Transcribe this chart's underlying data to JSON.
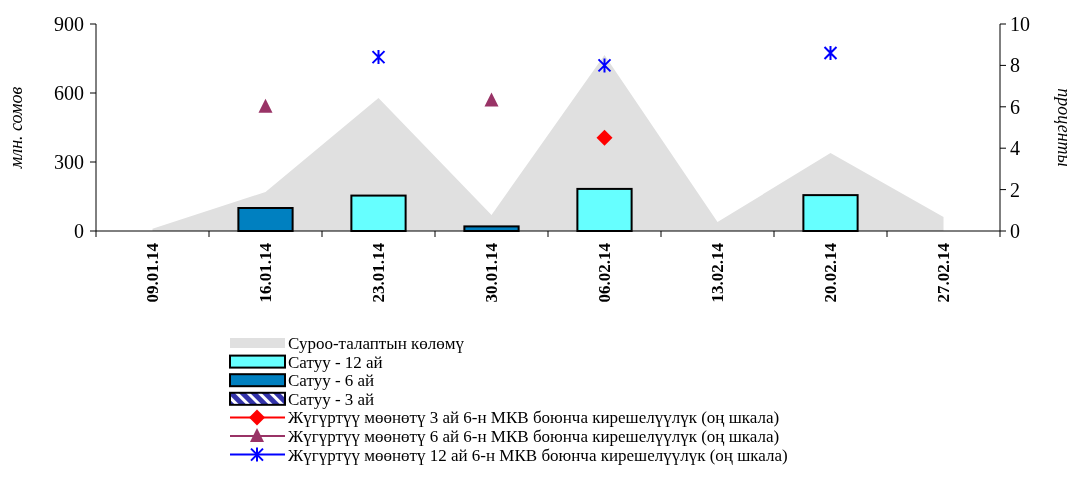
{
  "chart_data": {
    "type": "bar",
    "ylabel": "млн. сомов",
    "y2label": "проценты",
    "categories": [
      "09.01.14",
      "16.01.14",
      "23.01.14",
      "30.01.14",
      "06.02.14",
      "13.02.14",
      "20.02.14",
      "27.02.14"
    ],
    "legend": "bottom",
    "ylim": [
      0,
      900
    ],
    "yticks": [
      0,
      300,
      600,
      900
    ],
    "y2lim": [
      0,
      10
    ],
    "y2ticks": [
      0,
      2,
      4,
      6,
      8,
      10
    ],
    "series": [
      {
        "name": "Суроо-талаптын көлөмү",
        "type": "area",
        "color": "#e0e0e0",
        "values": [
          10,
          170,
          578,
          70,
          765,
          39,
          339,
          61
        ]
      },
      {
        "name": "Сатуу - 12 ай",
        "color": "#66ffff",
        "values": [
          null,
          null,
          154,
          null,
          183,
          null,
          156,
          null
        ]
      },
      {
        "name": "Сатуу - 6 ай",
        "color": "#0080c0",
        "values": [
          null,
          100,
          null,
          20,
          null,
          null,
          null,
          null
        ]
      },
      {
        "name": "Сатуу - 3 ай",
        "color": "#3333aa",
        "values": [
          null,
          null,
          null,
          null,
          null,
          null,
          null,
          null
        ]
      },
      {
        "name": "Жүгүртүү мөөнөтү 3 ай 6-н МКВ боюнча кирешелүүлүк (оң шкала)",
        "type": "scatter",
        "axis": "y2",
        "marker": "diamond",
        "color": "#ff0000",
        "values": [
          null,
          null,
          null,
          null,
          4.5,
          null,
          null,
          null
        ]
      },
      {
        "name": "Жүгүртүү мөөнөтү 6 ай 6-н МКВ боюнча кирешелүүлүк (оң шкала)",
        "type": "scatter",
        "axis": "y2",
        "marker": "triangle",
        "color": "#993366",
        "values": [
          null,
          6.0,
          null,
          6.3,
          null,
          null,
          null,
          null
        ]
      },
      {
        "name": "Жүгүртүү мөөнөтү 12 ай 6-н МКВ боюнча кирешелүүлүк (оң шкала)",
        "type": "scatter",
        "axis": "y2",
        "marker": "cross",
        "color": "#0000ff",
        "values": [
          null,
          null,
          8.4,
          null,
          8.0,
          null,
          8.6,
          null
        ]
      }
    ]
  }
}
